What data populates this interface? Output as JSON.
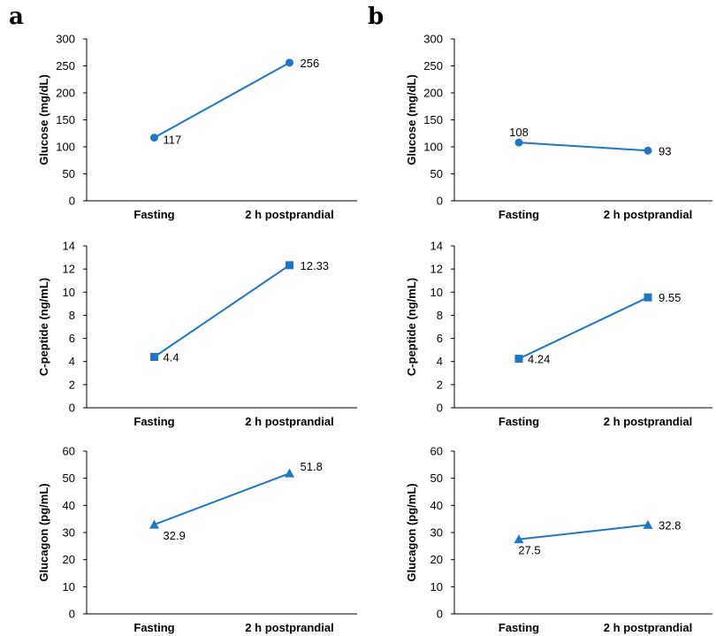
{
  "panels": [
    {
      "letter": "a"
    },
    {
      "letter": "b"
    }
  ],
  "chart_data": [
    {
      "type": "line",
      "panel": "a",
      "marker": "circle",
      "categories": [
        "Fasting",
        "2 h postprandial"
      ],
      "values": [
        117,
        256
      ],
      "data_labels": [
        "117",
        "256"
      ],
      "ylabel": "Glucose (mg/dL)",
      "ylim": [
        0,
        300
      ],
      "yticks": [
        "0",
        "50",
        "100",
        "150",
        "200",
        "250",
        "300"
      ],
      "color": "#1f77c4",
      "grid": false
    },
    {
      "type": "line",
      "panel": "b",
      "marker": "circle",
      "categories": [
        "Fasting",
        "2 h postprandial"
      ],
      "values": [
        108,
        93
      ],
      "data_labels": [
        "108",
        "93"
      ],
      "ylabel": "Glucose (mg/dL)",
      "ylim": [
        0,
        300
      ],
      "yticks": [
        "0",
        "50",
        "100",
        "150",
        "200",
        "250",
        "300"
      ],
      "color": "#1f77c4",
      "grid": false
    },
    {
      "type": "line",
      "panel": "a",
      "marker": "square",
      "categories": [
        "Fasting",
        "2 h postprandial"
      ],
      "values": [
        4.4,
        12.33
      ],
      "data_labels": [
        "4.4",
        "12.33"
      ],
      "ylabel": "C-peptide (ng/mL)",
      "ylim": [
        0,
        14
      ],
      "yticks": [
        "0",
        "2",
        "4",
        "6",
        "8",
        "10",
        "12",
        "14"
      ],
      "color": "#1f77c4",
      "grid": false
    },
    {
      "type": "line",
      "panel": "b",
      "marker": "square",
      "categories": [
        "Fasting",
        "2 h postprandial"
      ],
      "values": [
        4.24,
        9.55
      ],
      "data_labels": [
        "4.24",
        "9.55"
      ],
      "ylabel": "C-peptide (ng/mL)",
      "ylim": [
        0,
        14
      ],
      "yticks": [
        "0",
        "2",
        "4",
        "6",
        "8",
        "10",
        "12",
        "14"
      ],
      "color": "#1f77c4",
      "grid": false
    },
    {
      "type": "line",
      "panel": "a",
      "marker": "triangle",
      "categories": [
        "Fasting",
        "2 h postprandial"
      ],
      "values": [
        32.9,
        51.8
      ],
      "data_labels": [
        "32.9",
        "51.8"
      ],
      "ylabel": "Glucagon (pg/mL)",
      "ylim": [
        0,
        60
      ],
      "yticks": [
        "0",
        "10",
        "20",
        "30",
        "40",
        "50",
        "60"
      ],
      "color": "#1f77c4",
      "grid": false
    },
    {
      "type": "line",
      "panel": "b",
      "marker": "triangle",
      "categories": [
        "Fasting",
        "2 h postprandial"
      ],
      "values": [
        27.5,
        32.8
      ],
      "data_labels": [
        "27.5",
        "32.8"
      ],
      "ylabel": "Glucagon (pg/mL)",
      "ylim": [
        0,
        60
      ],
      "yticks": [
        "0",
        "10",
        "20",
        "30",
        "40",
        "50",
        "60"
      ],
      "color": "#1f77c4",
      "grid": false
    }
  ]
}
